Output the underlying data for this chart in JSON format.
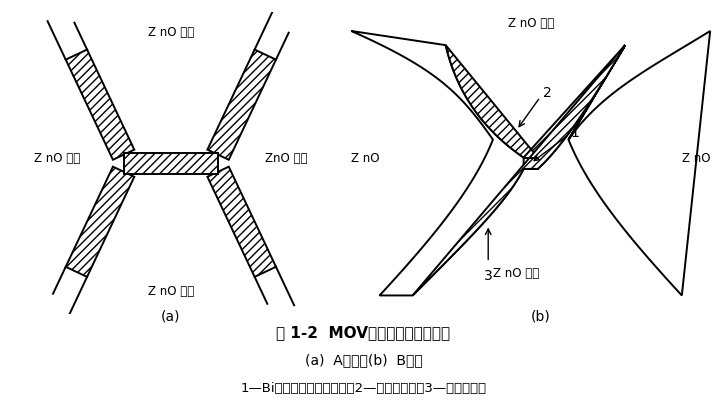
{
  "title": "图 1-2  MOV晶界结构的两种模型",
  "subtitle": "(a)  A模型；(b)  B模型",
  "caption": "1—Bi等添加剂离子富集区；2—薄晶界层区；3—厚晶界层区",
  "label_a": "(a)",
  "label_b": "(b)",
  "bg_color": "#ffffff",
  "line_color": "#000000"
}
